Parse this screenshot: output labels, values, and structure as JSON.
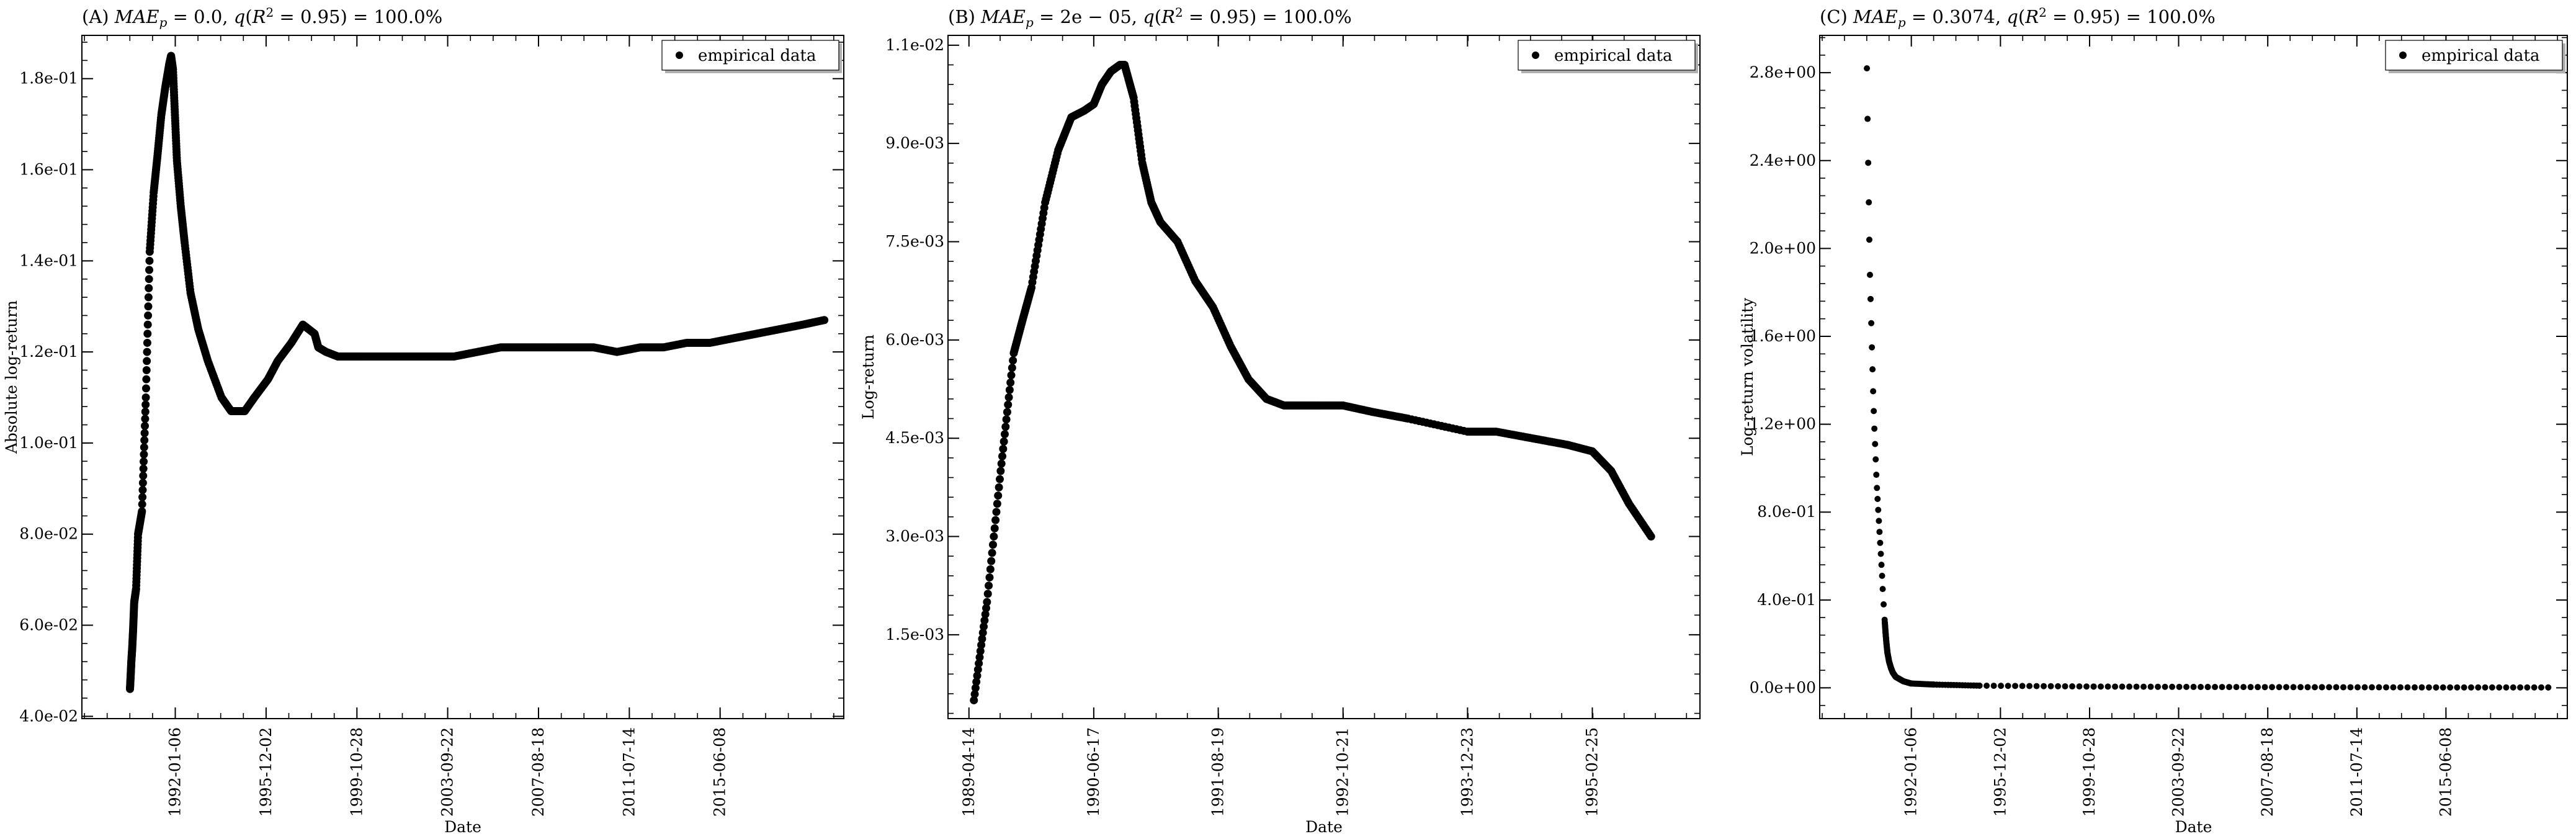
{
  "chart_data": [
    {
      "type": "scatter",
      "title": "(A) MAE_p = 0.0, q(R^2 = 0.95) = 100.0%",
      "title_parts": {
        "prefix": "(A) ",
        "var": "MAE",
        "sub": "p",
        "rest": " = 0.0, ",
        "q": "q",
        "open": "(",
        "r": "R",
        "sup": "2",
        "close": " = 0.95) = 100.0%"
      },
      "xlabel": "Date",
      "ylabel": "Absolute log-return",
      "legend": {
        "label": "empirical data",
        "placement": "top-right"
      },
      "x_tick_labels": [
        "1992-01-06",
        "1995-12-02",
        "1999-10-28",
        "2003-09-22",
        "2007-08-18",
        "2011-07-14",
        "2015-06-08"
      ],
      "x_ticks": [
        "1992-01-06",
        "1995-12-02",
        "1999-10-28",
        "2003-09-22",
        "2007-08-18",
        "2011-07-14",
        "2015-06-08"
      ],
      "xlim": [
        "1988-01-01",
        "2020-10-01"
      ],
      "y_tick_labels": [
        "4.0e-02",
        "6.0e-02",
        "8.0e-02",
        "1.0e-01",
        "1.2e-01",
        "1.4e-01",
        "1.6e-01",
        "1.8e-01"
      ],
      "y_ticks": [
        0.04,
        0.06,
        0.08,
        0.1,
        0.12,
        0.14,
        0.16,
        0.18
      ],
      "ylim": [
        0.0395,
        0.1895
      ],
      "series": [
        {
          "x": [
            "1990-01-25",
            "1990-02-05",
            "1990-02-15",
            "1990-03-01",
            "1990-03-15",
            "1990-04-01",
            "1990-05-01",
            "1990-06-01",
            "1990-08-01",
            "1990-10-01",
            "1990-12-01",
            "1991-02-01",
            "1991-04-01",
            "1991-06-01",
            "1991-08-01",
            "1991-10-01",
            "1991-11-01",
            "1991-12-01",
            "1992-01-01",
            "1992-02-01",
            "1992-04-01",
            "1992-06-01",
            "1992-09-01",
            "1993-01-01",
            "1993-06-01",
            "1994-01-01",
            "1994-06-01",
            "1995-01-01",
            "1995-06-01",
            "1996-01-01",
            "1996-06-01",
            "1997-01-01",
            "1997-07-01",
            "1998-01-01",
            "1998-03-01",
            "1998-07-01",
            "1999-01-01",
            "1999-06-01",
            "2000-01-01",
            "2001-01-01",
            "2002-01-01",
            "2003-01-01",
            "2004-01-01",
            "2005-01-01",
            "2006-01-01",
            "2007-01-01",
            "2008-01-01",
            "2009-01-01",
            "2010-01-01",
            "2011-01-01",
            "2012-01-01",
            "2013-01-01",
            "2014-01-01",
            "2015-01-01",
            "2016-01-01",
            "2017-01-01",
            "2018-01-01",
            "2019-01-01",
            "2019-12-01"
          ],
          "y": [
            0.046,
            0.049,
            0.052,
            0.055,
            0.059,
            0.065,
            0.068,
            0.08,
            0.085,
            0.11,
            0.142,
            0.155,
            0.163,
            0.172,
            0.178,
            0.183,
            0.185,
            0.182,
            0.172,
            0.162,
            0.152,
            0.144,
            0.133,
            0.125,
            0.118,
            0.11,
            0.107,
            0.107,
            0.11,
            0.114,
            0.118,
            0.122,
            0.126,
            0.124,
            0.121,
            0.12,
            0.119,
            0.119,
            0.119,
            0.119,
            0.119,
            0.119,
            0.119,
            0.12,
            0.121,
            0.121,
            0.121,
            0.121,
            0.121,
            0.12,
            0.121,
            0.121,
            0.122,
            0.122,
            0.123,
            0.124,
            0.125,
            0.126,
            0.127
          ]
        }
      ]
    },
    {
      "type": "scatter",
      "title": "(B) MAE_p = 2e-05, q(R^2 = 0.95) = 100.0%",
      "title_parts": {
        "prefix": "(B) ",
        "var": "MAE",
        "sub": "p",
        "rest": " = 2e − 05, ",
        "q": "q",
        "open": "(",
        "r": "R",
        "sup": "2",
        "close": " = 0.95) = 100.0%"
      },
      "xlabel": "Date",
      "ylabel": "Log-return",
      "legend": {
        "label": "empirical data",
        "placement": "top-right"
      },
      "x_tick_labels": [
        "1989-04-14",
        "1990-06-17",
        "1991-08-19",
        "1992-10-21",
        "1993-12-23",
        "1995-02-25"
      ],
      "x_ticks": [
        "1989-04-14",
        "1990-06-17",
        "1991-08-19",
        "1992-10-21",
        "1993-12-23",
        "1995-02-25"
      ],
      "xlim": [
        "1989-02-01",
        "1996-03-01"
      ],
      "y_tick_labels": [
        "1.5e-03",
        "3.0e-03",
        "4.5e-03",
        "6.0e-03",
        "7.5e-03",
        "9.0e-03",
        "1.1e-02"
      ],
      "y_ticks": [
        0.0015,
        0.003,
        0.0045,
        0.006,
        0.0075,
        0.009,
        0.0105
      ],
      "ylim": [
        0.00022,
        0.01065
      ],
      "series": [
        {
          "x": [
            "1989-05-01",
            "1989-06-15",
            "1989-08-01",
            "1989-09-15",
            "1989-10-15",
            "1989-11-15",
            "1990-01-01",
            "1990-02-15",
            "1990-04-01",
            "1990-05-15",
            "1990-06-17",
            "1990-07-15",
            "1990-08-15",
            "1990-09-15",
            "1990-10-01",
            "1990-11-01",
            "1990-12-01",
            "1991-01-01",
            "1991-02-01",
            "1991-04-01",
            "1991-06-01",
            "1991-08-01",
            "1991-10-01",
            "1991-12-01",
            "1992-02-01",
            "1992-04-01",
            "1992-06-01",
            "1992-08-01",
            "1992-10-21",
            "1993-02-01",
            "1993-06-01",
            "1993-12-23",
            "1994-04-01",
            "1994-08-01",
            "1994-12-01",
            "1995-02-25",
            "1995-05-01",
            "1995-07-01",
            "1995-09-15"
          ],
          "y": [
            0.0005,
            0.002,
            0.004,
            0.0058,
            0.0063,
            0.0068,
            0.0081,
            0.0089,
            0.0094,
            0.0095,
            0.0096,
            0.0099,
            0.0101,
            0.0102,
            0.0102,
            0.0097,
            0.0087,
            0.0081,
            0.0078,
            0.0075,
            0.0069,
            0.0065,
            0.0059,
            0.0054,
            0.0051,
            0.005,
            0.005,
            0.005,
            0.005,
            0.0049,
            0.0048,
            0.0046,
            0.0046,
            0.0045,
            0.0044,
            0.0043,
            0.004,
            0.0035,
            0.003
          ]
        }
      ]
    },
    {
      "type": "scatter",
      "title": "(C) MAE_p = 0.3074, q(R^2 = 0.95) = 100.0%",
      "title_parts": {
        "prefix": "(C) ",
        "var": "MAE",
        "sub": "p",
        "rest": " = 0.3074, ",
        "q": "q",
        "open": "(",
        "r": "R",
        "sup": "2",
        "close": " = 0.95) = 100.0%"
      },
      "xlabel": "Date",
      "ylabel": "Log-return volatility",
      "legend": {
        "label": "empirical data",
        "placement": "top-right"
      },
      "x_tick_labels": [
        "1992-01-06",
        "1995-12-02",
        "1999-10-28",
        "2003-09-22",
        "2007-08-18",
        "2011-07-14",
        "2015-06-08"
      ],
      "x_ticks": [
        "1992-01-06",
        "1995-12-02",
        "1999-10-28",
        "2003-09-22",
        "2007-08-18",
        "2011-07-14",
        "2015-06-08"
      ],
      "xlim": [
        "1988-01-01",
        "2020-10-01"
      ],
      "y_tick_labels": [
        "0.0e+00",
        "4.0e-01",
        "8.0e-01",
        "1.2e+00",
        "1.6e+00",
        "2.0e+00",
        "2.4e+00",
        "2.8e+00"
      ],
      "y_ticks": [
        0.0,
        0.4,
        0.8,
        1.2,
        1.6,
        2.0,
        2.4,
        2.8
      ],
      "ylim": [
        -0.14,
        2.97
      ],
      "series": [
        {
          "x": [
            "1990-01-25",
            "1990-02-05",
            "1990-02-15",
            "1990-02-25",
            "1990-03-05",
            "1990-03-15",
            "1990-03-25",
            "1990-04-05",
            "1990-04-15",
            "1990-04-25",
            "1990-05-05",
            "1990-05-15",
            "1990-05-25",
            "1990-06-05",
            "1990-06-15",
            "1990-06-25",
            "1990-07-05",
            "1990-07-15",
            "1990-07-25",
            "1990-08-05",
            "1990-08-15",
            "1990-08-25",
            "1990-09-05",
            "1990-09-15",
            "1990-09-25",
            "1990-10-05",
            "1990-10-20",
            "1990-11-05",
            "1990-11-20",
            "1990-12-05",
            "1990-12-20",
            "1991-01-15",
            "1991-02-15",
            "1991-03-15",
            "1991-05-01",
            "1991-07-01",
            "1991-09-01",
            "1992-01-01",
            "1993-01-01",
            "1995-01-01",
            "2000-01-01",
            "2005-01-01",
            "2010-01-01",
            "2015-01-01",
            "2019-12-01"
          ],
          "y": [
            2.82,
            2.59,
            2.39,
            2.21,
            2.04,
            1.88,
            1.77,
            1.66,
            1.55,
            1.45,
            1.35,
            1.26,
            1.18,
            1.11,
            1.04,
            0.97,
            0.91,
            0.86,
            0.81,
            0.76,
            0.71,
            0.66,
            0.61,
            0.56,
            0.51,
            0.45,
            0.38,
            0.31,
            0.25,
            0.2,
            0.16,
            0.12,
            0.09,
            0.07,
            0.05,
            0.04,
            0.03,
            0.02,
            0.015,
            0.01,
            0.006,
            0.004,
            0.003,
            0.002,
            0.002
          ]
        }
      ]
    }
  ]
}
